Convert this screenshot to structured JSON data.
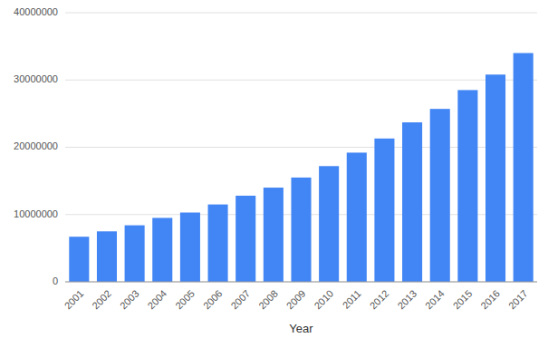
{
  "chart_data": {
    "type": "bar",
    "x_label": "Year",
    "categories": [
      "2001",
      "2002",
      "2003",
      "2004",
      "2005",
      "2006",
      "2007",
      "2008",
      "2009",
      "2010",
      "2011",
      "2012",
      "2013",
      "2014",
      "2015",
      "2016",
      "2017"
    ],
    "values": [
      6700000,
      7500000,
      8400000,
      9500000,
      10300000,
      11500000,
      12800000,
      14000000,
      15500000,
      17200000,
      19200000,
      21300000,
      23700000,
      25700000,
      28500000,
      30800000,
      34000000
    ],
    "color": "#4285f4",
    "ylim": [
      0,
      40000000
    ],
    "yticks": [
      0,
      10000000,
      20000000,
      30000000,
      40000000
    ],
    "grid": true
  }
}
